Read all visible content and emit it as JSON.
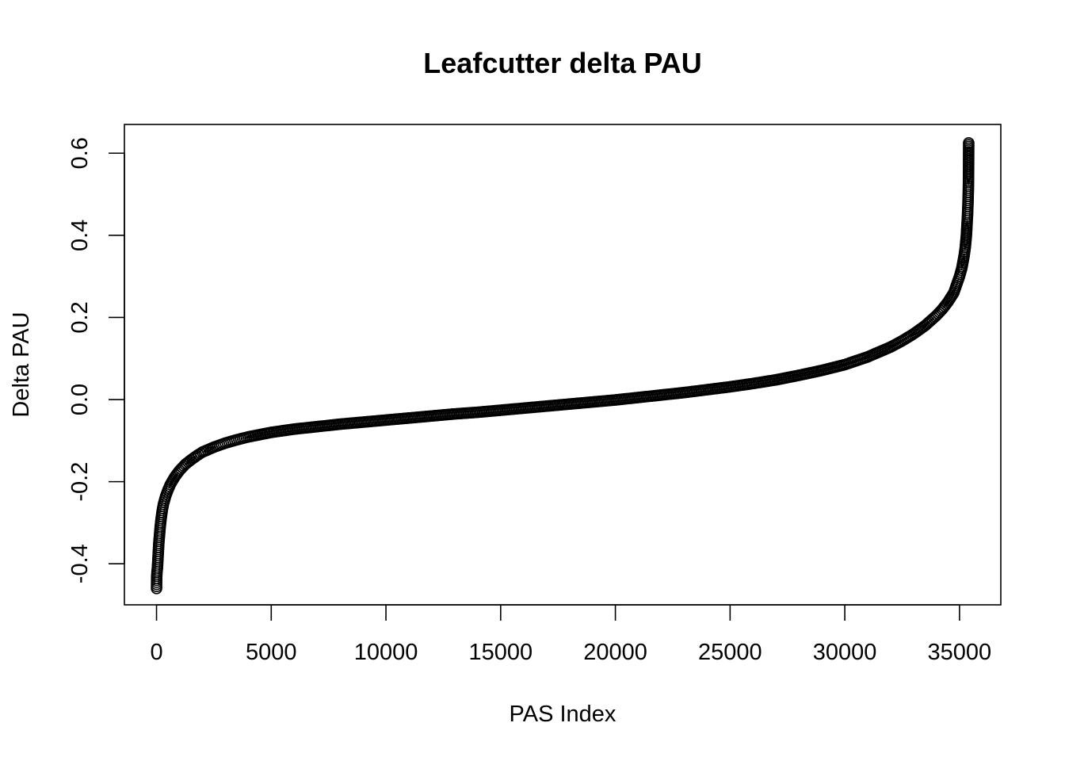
{
  "chart_data": {
    "type": "scatter",
    "title": "Leafcutter delta PAU",
    "xlabel": "PAS Index",
    "ylabel": "Delta PAU",
    "xlim": [
      -1400,
      36800
    ],
    "ylim": [
      -0.5,
      0.67
    ],
    "x_ticks": [
      0,
      5000,
      10000,
      15000,
      20000,
      25000,
      30000,
      35000
    ],
    "x_tick_labels": [
      "0",
      "5000",
      "10000",
      "15000",
      "20000",
      "25000",
      "30000",
      "35000"
    ],
    "y_ticks": [
      -0.4,
      -0.2,
      0.0,
      0.2,
      0.4,
      0.6
    ],
    "y_tick_labels": [
      "-0.4",
      "-0.2",
      "0.0",
      "0.2",
      "0.4",
      "0.6"
    ],
    "grid": false,
    "legend": "none",
    "marker": "open-circle",
    "n_points": 35400,
    "series": [
      {
        "x": [
          1,
          5,
          10,
          20,
          30,
          40,
          50,
          60,
          80,
          100,
          130,
          160,
          200,
          250,
          300,
          400,
          500,
          600,
          800,
          1000,
          1250,
          1500,
          1750,
          2000,
          2500,
          3000,
          3500,
          4000,
          5000,
          6000,
          7000,
          8000,
          9000,
          10000,
          11000,
          12000,
          13000,
          14000,
          15000,
          16000,
          17000,
          18000,
          19000,
          20000,
          21000,
          22000,
          23000,
          24000,
          25000,
          26000,
          27000,
          28000,
          29000,
          30000,
          31000,
          32000,
          32500,
          33000,
          33500,
          34000,
          34250,
          34500,
          34750,
          35000,
          35100,
          35200,
          35250,
          35300,
          35330,
          35350,
          35360,
          35370,
          35380,
          35385,
          35390,
          35395,
          35400
        ],
        "y": [
          -0.46,
          -0.44,
          -0.43,
          -0.42,
          -0.415,
          -0.41,
          -0.4,
          -0.39,
          -0.37,
          -0.35,
          -0.33,
          -0.31,
          -0.29,
          -0.27,
          -0.255,
          -0.235,
          -0.22,
          -0.207,
          -0.188,
          -0.173,
          -0.158,
          -0.147,
          -0.137,
          -0.128,
          -0.116,
          -0.106,
          -0.098,
          -0.091,
          -0.08,
          -0.072,
          -0.066,
          -0.06,
          -0.055,
          -0.05,
          -0.045,
          -0.04,
          -0.035,
          -0.031,
          -0.026,
          -0.021,
          -0.016,
          -0.011,
          -0.006,
          -0.001,
          0.005,
          0.011,
          0.017,
          0.024,
          0.031,
          0.039,
          0.048,
          0.059,
          0.071,
          0.085,
          0.104,
          0.128,
          0.143,
          0.16,
          0.18,
          0.205,
          0.22,
          0.238,
          0.26,
          0.3,
          0.32,
          0.35,
          0.37,
          0.4,
          0.43,
          0.45,
          0.465,
          0.48,
          0.5,
          0.51,
          0.53,
          0.56,
          0.625
        ]
      }
    ]
  }
}
